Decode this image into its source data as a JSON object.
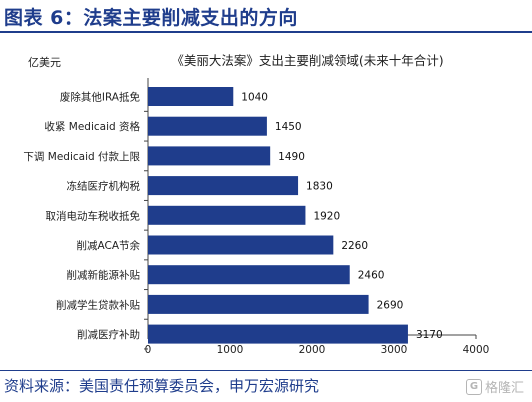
{
  "header": {
    "title": "图表 6：法案主要削减支出的方向"
  },
  "chart_data": {
    "type": "bar",
    "orientation": "horizontal",
    "title": "《美丽大法案》支出主要削减领域(未来十年合计)",
    "unit": "亿美元",
    "categories": [
      "废除其他IRA抵免",
      "收紧 Medicaid 资格",
      "下调 Medicaid 付款上限",
      "冻结医疗机构税",
      "取消电动车税收抵免",
      "削减ACA节余",
      "削减新能源补贴",
      "削减学生贷款补贴",
      "削减医疗补助"
    ],
    "values": [
      1040,
      1450,
      1490,
      1830,
      1920,
      2260,
      2460,
      2690,
      3170
    ],
    "xlim": [
      0,
      4000
    ],
    "xticks": [
      0,
      1000,
      2000,
      3000,
      4000
    ],
    "bar_color": "#1f3d8c",
    "grid": false,
    "legend": "none"
  },
  "footer": {
    "source": "资料来源：美国责任预算委员会，申万宏源研究"
  },
  "watermark": {
    "icon_text": "G",
    "text": "格隆汇"
  }
}
